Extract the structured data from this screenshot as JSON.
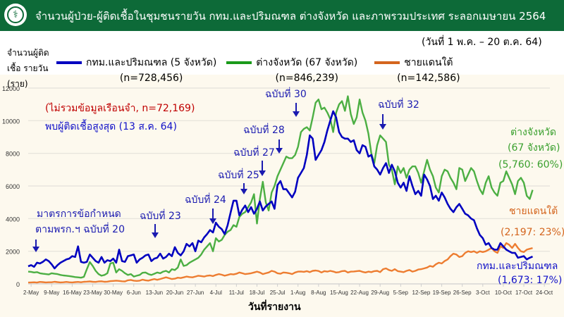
{
  "header": {
    "title": "จำนวนผู้ป่วย-ผู้ติดเชื้อในชุมชนรายวัน กทม.และปริมณฑล ต่างจังหวัด และภาพรวมประเทศ ระลอกเมษายน 2564",
    "logo": "ministry-of-public-health-logo"
  },
  "date_range": "(วันที่ 1 พ.ค. – 20 ต.ค. 64)",
  "colors": {
    "header": "#0d6a38",
    "bangkok": "#0000c0",
    "provinces": "#4caf43",
    "south": "#ed7d31"
  },
  "chart_data": {
    "type": "line",
    "ylabel": "จำนวนผู้ติดเชื้อ รายวัน (ราย)",
    "xlabel": "วันที่รายงาน",
    "ylim": [
      0,
      12000
    ],
    "yticks": [
      "0",
      "2000",
      "4000",
      "6000",
      "8000",
      "10000",
      "12000"
    ],
    "xlim": [
      "2021-05-01",
      "2021-10-20"
    ],
    "xticks": [
      "2-May",
      "9-May",
      "16-May",
      "23-May",
      "30-May",
      "6-Jun",
      "13-Jun",
      "20-Jun",
      "27-Jun",
      "4-Jul",
      "11-Jul",
      "18-Jul",
      "25-Jul",
      "1-Aug",
      "8-Aug",
      "15-Aug",
      "22-Aug",
      "29-Aug",
      "5-Sep",
      "12-Sep",
      "19-Sep",
      "26-Sep",
      "3-Oct",
      "10-Oct",
      "17-Oct",
      "24-Oct"
    ],
    "grid": true,
    "series": [
      {
        "name": "กทม.และปริมณฑล (5 จังหวัด)",
        "n": "(n=728,456)",
        "color": "#0000c0",
        "end_label": "กทม.และปริมณฑล",
        "end_value": "(1,673: 17%)",
        "values": [
          1080,
          1150,
          1050,
          1300,
          1250,
          1350,
          1500,
          1400,
          1200,
          950,
          1150,
          1300,
          1400,
          1500,
          1550,
          1700,
          1650,
          2300,
          1350,
          1300,
          1350,
          1800,
          1600,
          1400,
          1300,
          1650,
          1300,
          1450,
          1400,
          1550,
          1300,
          2100,
          1400,
          1350,
          1700,
          1750,
          1800,
          1300,
          1500,
          1600,
          1750,
          1800,
          1400,
          1550,
          1600,
          1850,
          1550,
          1650,
          1850,
          1700,
          2250,
          1900,
          1750,
          2000,
          2450,
          2300,
          2500,
          2000,
          2650,
          2550,
          2850,
          3050,
          3300,
          3150,
          3750,
          3500,
          3350,
          3050,
          3600,
          4350,
          5100,
          5100,
          4200,
          4550,
          4800,
          4400,
          4700,
          4300,
          4600,
          5050,
          4500,
          4750,
          4900,
          5050,
          4600,
          6050,
          6300,
          5800,
          5800,
          5550,
          5300,
          5650,
          6500,
          6800,
          7100,
          7900,
          9100,
          8900,
          7600,
          7900,
          8200,
          8700,
          9400,
          10000,
          10580,
          10200,
          9300,
          9000,
          8900,
          8900,
          8700,
          8800,
          8200,
          8000,
          8500,
          8400,
          7800,
          7900,
          7200,
          7000,
          6700,
          7100,
          7400,
          6800,
          7300,
          6900,
          6200,
          5900,
          6200,
          5700,
          6600,
          6000,
          5500,
          5700,
          5400,
          6700,
          6400,
          6000,
          5200,
          5400,
          5100,
          5600,
          5300,
          4900,
          4600,
          4400,
          4700,
          4900,
          4600,
          4300,
          4200,
          4000,
          3900,
          3400,
          3000,
          2800,
          2400,
          2500,
          2200,
          2100,
          2100,
          2500,
          2300,
          2100,
          2000,
          1900,
          1900,
          1600,
          1650,
          1700,
          1500,
          1600,
          1673
        ]
      },
      {
        "name": "ต่างจังหวัด (67 จังหวัด)",
        "n": "(n=846,239)",
        "color": "#4caf43",
        "end_label": "ต่างจังหวัด",
        "end_label2": "(67 จังหวัด)",
        "end_value": "(5,760: 60%)",
        "values": [
          750,
          740,
          700,
          720,
          650,
          620,
          600,
          580,
          650,
          620,
          600,
          550,
          520,
          500,
          480,
          450,
          420,
          400,
          380,
          430,
          900,
          1340,
          1100,
          800,
          600,
          500,
          550,
          650,
          1250,
          1300,
          700,
          900,
          800,
          650,
          550,
          600,
          450,
          500,
          550,
          680,
          700,
          600,
          550,
          620,
          700,
          650,
          750,
          800,
          700,
          900,
          850,
          1000,
          1500,
          1100,
          1150,
          1300,
          1400,
          1500,
          1600,
          1800,
          2100,
          2300,
          2500,
          2000,
          2800,
          2600,
          2700,
          3000,
          3200,
          3300,
          3600,
          3500,
          4100,
          4300,
          4400,
          4700,
          5000,
          5500,
          3700,
          5200,
          6260,
          5000,
          4500,
          5600,
          6000,
          6600,
          7000,
          7400,
          7800,
          7700,
          7700,
          7900,
          8400,
          9300,
          9500,
          9600,
          9400,
          10200,
          11100,
          11300,
          10700,
          10800,
          10500,
          10100,
          9300,
          10500,
          11000,
          11200,
          10600,
          11500,
          10400,
          9800,
          10200,
          11300,
          10500,
          10000,
          9200,
          8000,
          7400,
          8500,
          9100,
          8900,
          8700,
          7300,
          7000,
          6100,
          7200,
          6800,
          7100,
          6500,
          7000,
          7200,
          7200,
          6800,
          6200,
          6900,
          7600,
          7000,
          6600,
          5900,
          5600,
          6600,
          7000,
          6900,
          6500,
          6200,
          5800,
          7100,
          7000,
          6300,
          6700,
          7100,
          6900,
          6300,
          5800,
          5500,
          6200,
          6600,
          5900,
          5600,
          5400,
          6200,
          6300,
          6900,
          6500,
          6100,
          5500,
          6300,
          6500,
          6200,
          5400,
          5200,
          5760
        ]
      },
      {
        "name": "ชายแดนใต้",
        "n": "(n=142,586)",
        "color": "#ed7d31",
        "end_label": "ชายแดนใต้",
        "end_value": "(2,197: 23%)",
        "values": [
          80,
          90,
          100,
          80,
          120,
          110,
          90,
          100,
          100,
          130,
          110,
          90,
          100,
          120,
          100,
          90,
          110,
          120,
          100,
          130,
          140,
          150,
          130,
          120,
          150,
          160,
          130,
          140,
          170,
          180,
          200,
          180,
          160,
          150,
          220,
          240,
          200,
          180,
          200,
          260,
          220,
          200,
          250,
          300,
          250,
          300,
          350,
          400,
          350,
          300,
          320,
          380,
          360,
          400,
          450,
          420,
          400,
          450,
          500,
          480,
          450,
          500,
          520,
          480,
          550,
          600,
          560,
          500,
          550,
          600,
          580,
          620,
          700,
          650,
          600,
          620,
          650,
          700,
          750,
          700,
          600,
          650,
          700,
          800,
          750,
          650,
          620,
          700,
          680,
          650,
          600,
          700,
          750,
          760,
          740,
          780,
          720,
          800,
          820,
          790,
          700,
          780,
          750,
          800,
          760,
          700,
          720,
          780,
          800,
          700,
          750,
          760,
          780,
          800,
          740,
          700,
          750,
          720,
          780,
          800,
          720,
          900,
          950,
          850,
          800,
          900,
          780,
          750,
          720,
          800,
          850,
          750,
          800,
          880,
          900,
          950,
          1000,
          1100,
          1050,
          1200,
          1300,
          1250,
          1400,
          1500,
          1700,
          1850,
          1800,
          1650,
          1700,
          1900,
          2000,
          1950,
          2000,
          1900,
          2000,
          1950,
          2000,
          2100,
          2200,
          2000,
          1900,
          2300,
          2200,
          2500,
          2400,
          2200,
          2450,
          2200,
          2000,
          1950,
          2100,
          2150,
          2197
        ]
      }
    ],
    "annotations": {
      "excluded": "(ไม่รวมข้อมูลเรือนจำ, n=72,169)",
      "peak": "พบผู้ติดเชื้อสูงสุด (13 ส.ค. 64)",
      "decree20_line1": "มาตรการข้อกำหนด",
      "decree20_line2": "ตามพรก.ฯ ฉบับที่ 20",
      "decree23": "ฉบับที่ 23",
      "decree24": "ฉบับที่ 24",
      "decree25": "ฉบับที่ 25",
      "decree27": "ฉบับที่ 27",
      "decree28": "ฉบับที่ 28",
      "decree30": "ฉบับที่ 30",
      "decree32": "ฉบับที่ 32"
    }
  }
}
